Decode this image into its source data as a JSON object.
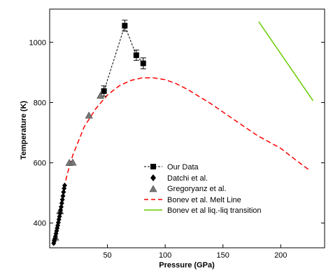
{
  "chart_data": {
    "type": "scatter",
    "xlabel": "Pressure (GPa)",
    "ylabel": "Temperature (K)",
    "xlim": [
      0,
      238
    ],
    "ylim": [
      318,
      1110
    ],
    "xticks": [
      50,
      100,
      150,
      200
    ],
    "yticks": [
      400,
      600,
      800,
      1000
    ],
    "xtick_labels": [
      "50",
      "100",
      "150",
      "200"
    ],
    "ytick_labels": [
      "400",
      "600",
      "800",
      "1000"
    ],
    "grid": false,
    "legend_position": "lower-center",
    "series": [
      {
        "name": "Our Data",
        "marker": "square",
        "line": "dashed",
        "color": "#000000",
        "points": [
          {
            "x": 47,
            "y": 838,
            "err": 17
          },
          {
            "x": 65,
            "y": 1055,
            "err": 18
          },
          {
            "x": 75,
            "y": 957,
            "err": 17
          },
          {
            "x": 81,
            "y": 930,
            "err": 18
          }
        ]
      },
      {
        "name": "Datchi et al.",
        "marker": "diamond",
        "color": "#000000",
        "points": [
          {
            "x": 3.5,
            "y": 333
          },
          {
            "x": 4,
            "y": 340
          },
          {
            "x": 4.5,
            "y": 348
          },
          {
            "x": 5,
            "y": 356
          },
          {
            "x": 5.5,
            "y": 365
          },
          {
            "x": 6,
            "y": 374
          },
          {
            "x": 6.5,
            "y": 383
          },
          {
            "x": 7,
            "y": 392
          },
          {
            "x": 7.5,
            "y": 402
          },
          {
            "x": 8,
            "y": 412
          },
          {
            "x": 8.5,
            "y": 422
          },
          {
            "x": 9,
            "y": 432
          },
          {
            "x": 9.5,
            "y": 443
          },
          {
            "x": 10,
            "y": 454
          },
          {
            "x": 10.5,
            "y": 466
          },
          {
            "x": 11,
            "y": 478
          },
          {
            "x": 11.5,
            "y": 490
          },
          {
            "x": 12,
            "y": 503
          },
          {
            "x": 12.5,
            "y": 515
          },
          {
            "x": 13,
            "y": 525
          }
        ]
      },
      {
        "name": "Gregoryanz et al.",
        "marker": "triangle",
        "color": "#777777",
        "points": [
          {
            "x": 5,
            "y": 352
          },
          {
            "x": 9,
            "y": 440
          },
          {
            "x": 17,
            "y": 600
          },
          {
            "x": 20,
            "y": 601
          },
          {
            "x": 34,
            "y": 757
          },
          {
            "x": 44,
            "y": 823
          }
        ]
      },
      {
        "name": "Bonev et al. Melt Line",
        "marker": "none",
        "line": "dashed",
        "color": "#ff0000",
        "points": [
          {
            "x": 5,
            "y": 340
          },
          {
            "x": 10,
            "y": 470
          },
          {
            "x": 15,
            "y": 560
          },
          {
            "x": 20,
            "y": 625
          },
          {
            "x": 30,
            "y": 720
          },
          {
            "x": 40,
            "y": 780
          },
          {
            "x": 50,
            "y": 825
          },
          {
            "x": 60,
            "y": 855
          },
          {
            "x": 70,
            "y": 873
          },
          {
            "x": 80,
            "y": 882
          },
          {
            "x": 90,
            "y": 882
          },
          {
            "x": 100,
            "y": 876
          },
          {
            "x": 110,
            "y": 862
          },
          {
            "x": 120,
            "y": 842
          },
          {
            "x": 140,
            "y": 795
          },
          {
            "x": 160,
            "y": 742
          },
          {
            "x": 180,
            "y": 690
          },
          {
            "x": 200,
            "y": 648
          },
          {
            "x": 210,
            "y": 618
          },
          {
            "x": 225,
            "y": 575
          }
        ]
      },
      {
        "name": "Bonev et al liq.-liq transition",
        "marker": "none",
        "line": "solid",
        "color": "#66cc00",
        "points": [
          {
            "x": 181,
            "y": 1068
          },
          {
            "x": 228,
            "y": 806
          }
        ]
      }
    ]
  }
}
